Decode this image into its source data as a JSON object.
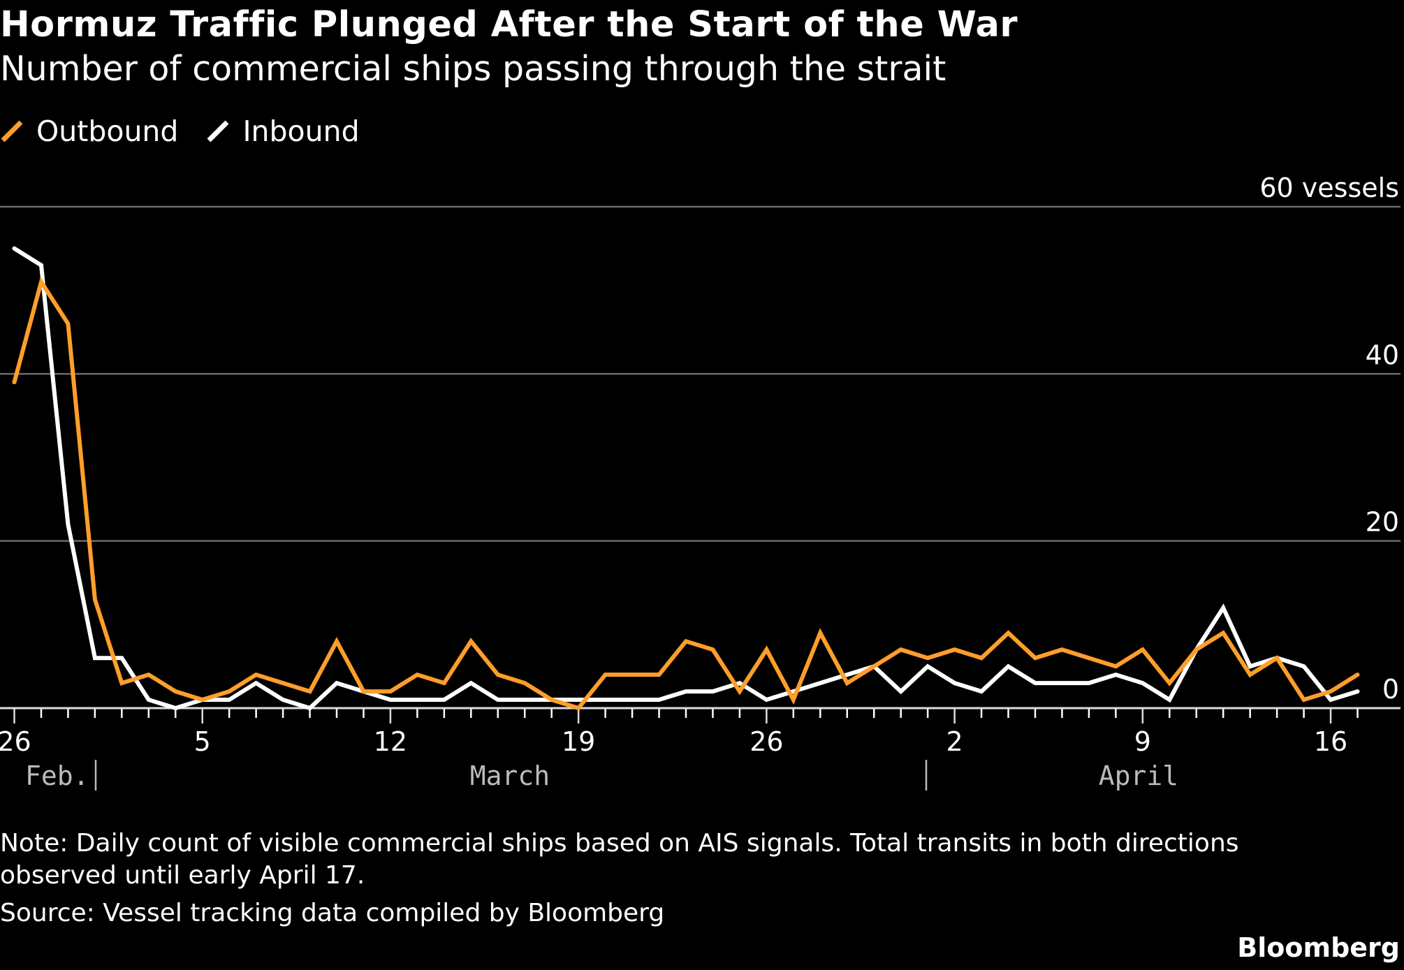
{
  "title": "Hormuz Traffic Plunged After the Start of the War",
  "subtitle": "Number of commercial ships passing through the strait",
  "note": "Note: Daily count of visible commercial ships based on AIS signals. Total transits in both directions observed until early April 17.",
  "source": "Source: Vessel tracking data compiled by Bloomberg",
  "brand": "Bloomberg",
  "colors": {
    "background": "#000000",
    "outbound": "#FF9E2A",
    "inbound": "#FFFFFF",
    "grid": "#6b6b6b"
  },
  "chart_data": {
    "type": "line",
    "title": "Hormuz Traffic Plunged After the Start of the War",
    "subtitle": "Number of commercial ships passing through the strait",
    "x_start": "Feb. 26",
    "x_end": "April 17",
    "x_ticks": [
      "26",
      "5",
      "12",
      "19",
      "26",
      "2",
      "9",
      "16"
    ],
    "x_tick_offsets_days": [
      0,
      7,
      14,
      21,
      28,
      35,
      42,
      49
    ],
    "month_labels": [
      "Feb.",
      "March",
      "April"
    ],
    "y_ticks": [
      "0",
      "20",
      "40",
      "60 vessels"
    ],
    "ylim": [
      0,
      60
    ],
    "grid": true,
    "legend": "top-left",
    "series": [
      {
        "name": "Outbound",
        "color": "#FF9E2A",
        "values": [
          39,
          51,
          46,
          13,
          3,
          4,
          2,
          1,
          2,
          4,
          3,
          2,
          8,
          2,
          2,
          4,
          3,
          8,
          4,
          3,
          1,
          0,
          4,
          4,
          4,
          8,
          7,
          2,
          7,
          1,
          9,
          3,
          5,
          7,
          6,
          7,
          6,
          9,
          6,
          7,
          6,
          5,
          7,
          3,
          7,
          9,
          4,
          6,
          1,
          2,
          4
        ]
      },
      {
        "name": "Inbound",
        "color": "#FFFFFF",
        "values": [
          55,
          53,
          22,
          6,
          6,
          1,
          0,
          1,
          1,
          3,
          1,
          0,
          3,
          2,
          1,
          1,
          1,
          3,
          1,
          1,
          1,
          1,
          1,
          1,
          1,
          2,
          2,
          3,
          1,
          2,
          3,
          4,
          5,
          2,
          5,
          3,
          2,
          5,
          3,
          3,
          3,
          4,
          3,
          1,
          7,
          12,
          5,
          6,
          5,
          1,
          2
        ]
      }
    ]
  }
}
